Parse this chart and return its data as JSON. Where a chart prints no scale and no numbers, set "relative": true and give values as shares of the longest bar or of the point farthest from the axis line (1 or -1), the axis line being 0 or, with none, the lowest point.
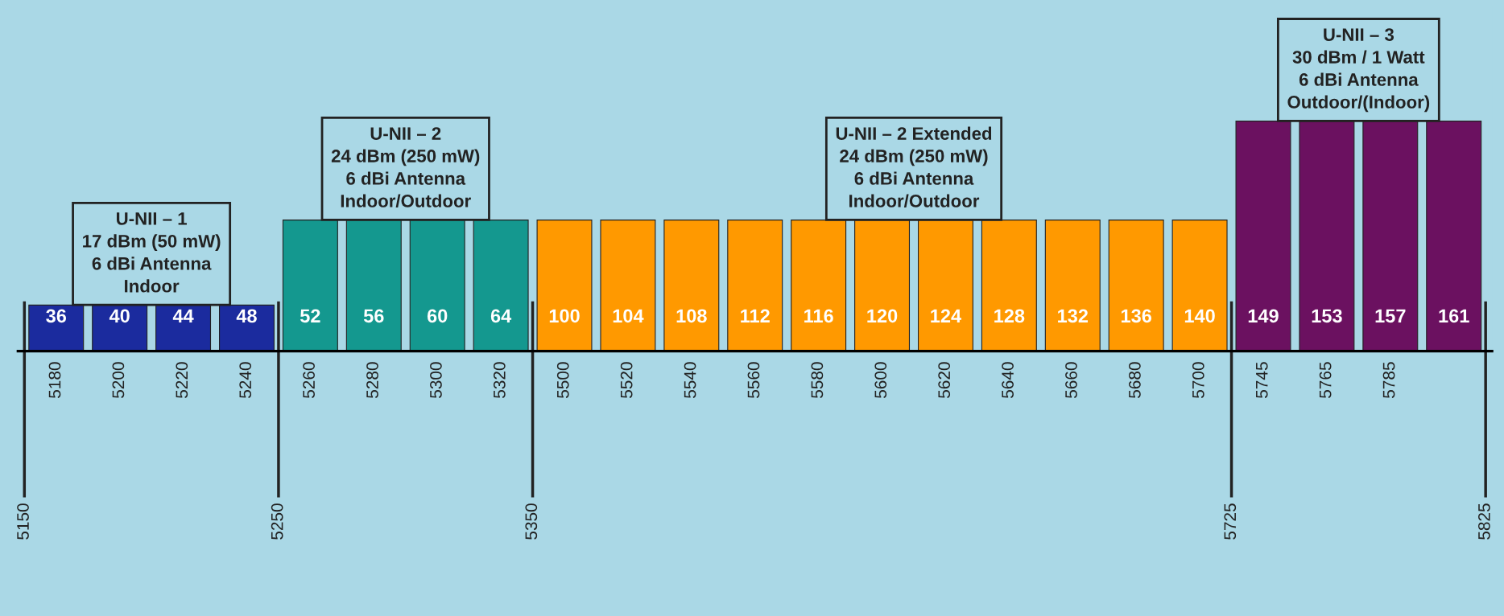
{
  "chart_data": {
    "type": "bar",
    "relative": true,
    "categories": [
      "36",
      "40",
      "44",
      "48",
      "52",
      "56",
      "60",
      "64",
      "100",
      "104",
      "108",
      "112",
      "116",
      "120",
      "124",
      "128",
      "132",
      "136",
      "140",
      "149",
      "153",
      "157",
      "161"
    ],
    "values": [
      0.2,
      0.2,
      0.2,
      0.2,
      0.57,
      0.57,
      0.57,
      0.57,
      0.57,
      0.57,
      0.57,
      0.57,
      0.57,
      0.57,
      0.57,
      0.57,
      0.57,
      0.57,
      0.57,
      1,
      1,
      1,
      1
    ],
    "colors": [
      "#1b2b9e",
      "#1b2b9e",
      "#1b2b9e",
      "#1b2b9e",
      "#14988f",
      "#14988f",
      "#14988f",
      "#14988f",
      "#ff9900",
      "#ff9900",
      "#ff9900",
      "#ff9900",
      "#ff9900",
      "#ff9900",
      "#ff9900",
      "#ff9900",
      "#ff9900",
      "#ff9900",
      "#ff9900",
      "#6b1160",
      "#6b1160",
      "#6b1160",
      "#6b1160"
    ],
    "annotations": [
      {
        "text": "U-NII – 1\n17 dBm (50 mW)\n6 dBi Antenna\nIndoor",
        "x": "40",
        "y": 0.2
      },
      {
        "text": "U-NII – 2\n24 dBm (250 mW)\n6 dBi Antenna\nIndoor/Outdoor",
        "x": "56",
        "y": 0.57
      },
      {
        "text": "U-NII – 2 Extended\n24 dBm (250 mW)\n6 dBi Antenna\nIndoor/Outdoor",
        "x": "120",
        "y": 0.57
      },
      {
        "text": "U-NII – 3\n30 dBm / 1 Watt\n6 dBi Antenna\nOutdoor/(Indoor)",
        "x": "153",
        "y": 1
      },
      {
        "text": "5180",
        "x": "36",
        "y": 0
      },
      {
        "text": "5200",
        "x": "40",
        "y": 0
      },
      {
        "text": "5220",
        "x": "44",
        "y": 0
      },
      {
        "text": "5240",
        "x": "48",
        "y": 0
      },
      {
        "text": "5260",
        "x": "52",
        "y": 0
      },
      {
        "text": "5280",
        "x": "56",
        "y": 0
      },
      {
        "text": "5300",
        "x": "60",
        "y": 0
      },
      {
        "text": "5320",
        "x": "64",
        "y": 0
      },
      {
        "text": "5500",
        "x": "100",
        "y": 0
      },
      {
        "text": "5520",
        "x": "104",
        "y": 0
      },
      {
        "text": "5540",
        "x": "108",
        "y": 0
      },
      {
        "text": "5560",
        "x": "112",
        "y": 0
      },
      {
        "text": "5580",
        "x": "116",
        "y": 0
      },
      {
        "text": "5600",
        "x": "120",
        "y": 0
      },
      {
        "text": "5620",
        "x": "124",
        "y": 0
      },
      {
        "text": "5640",
        "x": "128",
        "y": 0
      },
      {
        "text": "5660",
        "x": "132",
        "y": 0
      },
      {
        "text": "5680",
        "x": "136",
        "y": 0
      },
      {
        "text": "5700",
        "x": "140",
        "y": 0
      },
      {
        "text": "5745",
        "x": "149",
        "y": 0
      },
      {
        "text": "5765",
        "x": "153",
        "y": 0
      },
      {
        "text": "5785",
        "x": "157",
        "y": 0
      },
      "5150",
      "5250",
      "5350",
      "5725",
      "5825"
    ],
    "grid": false
  }
}
